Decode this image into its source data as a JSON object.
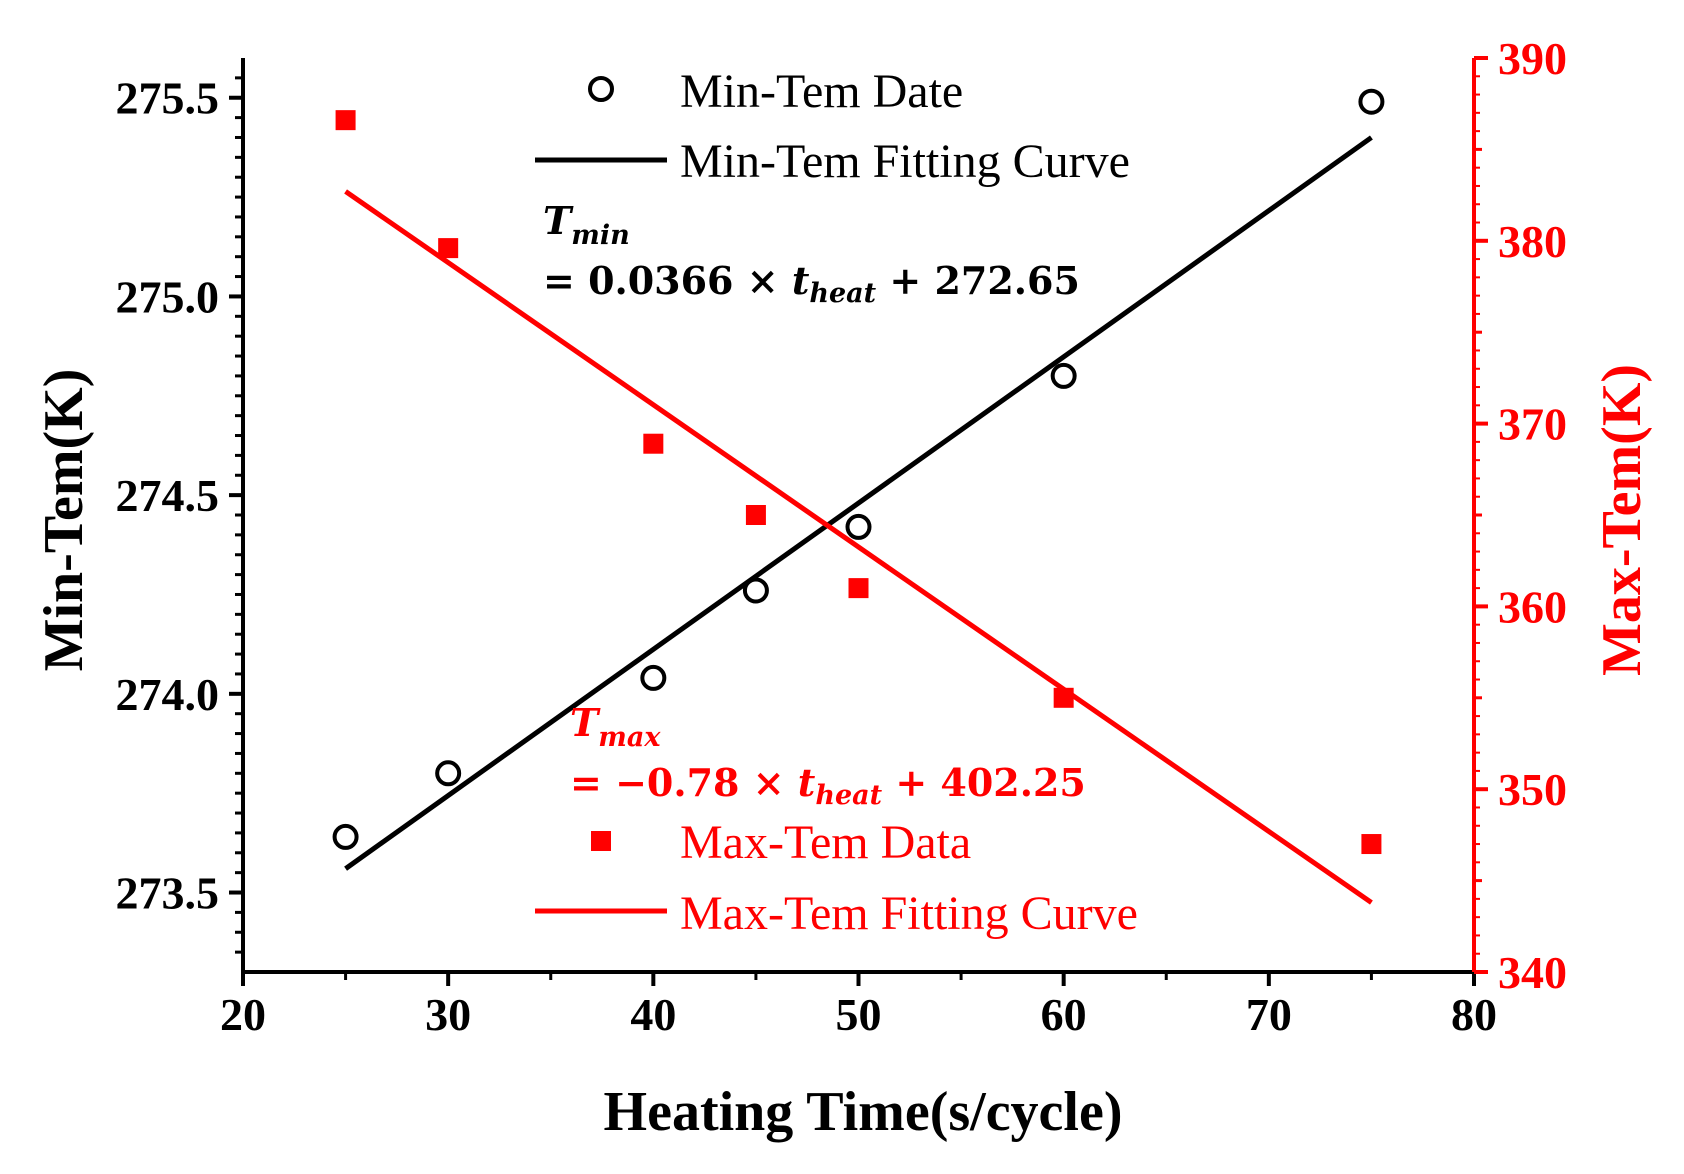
{
  "chart_data": {
    "type": "scatter",
    "xlabel": "Heating Time(s/cycle)",
    "ylabel": "Min-Tem(K)",
    "y2label": "Max-Tem(K)",
    "xlim": [
      20,
      80
    ],
    "ylim": [
      273.3,
      275.6
    ],
    "y2lim": [
      340,
      390
    ],
    "x_ticks": [
      "20",
      "30",
      "40",
      "50",
      "60",
      "70",
      "80"
    ],
    "y_ticks": [
      "273.5",
      "274.0",
      "274.5",
      "275.0",
      "275.5"
    ],
    "y2_ticks": [
      "340",
      "350",
      "360",
      "370",
      "380",
      "390"
    ],
    "colors": {
      "min": "#000000",
      "max": "#ff0000"
    },
    "series": [
      {
        "name": "Min-Tem Date",
        "kind": "points",
        "axis": "left",
        "marker": "open-circle",
        "x": [
          25,
          30,
          40,
          45,
          50,
          60,
          75
        ],
        "y": [
          273.64,
          273.8,
          274.04,
          274.26,
          274.42,
          274.8,
          275.49
        ]
      },
      {
        "name": "Min-Tem Fitting Curve",
        "kind": "line",
        "axis": "left",
        "x": [
          25,
          75
        ],
        "y": [
          273.56,
          275.4
        ]
      },
      {
        "name": "Max-Tem Data",
        "kind": "points",
        "axis": "right",
        "marker": "filled-square",
        "x": [
          25,
          30,
          40,
          45,
          50,
          60,
          75
        ],
        "y": [
          386.6,
          379.6,
          368.9,
          365.0,
          361.0,
          355.0,
          347.0
        ]
      },
      {
        "name": "Max-Tem Fitting Curve",
        "kind": "line",
        "axis": "right",
        "x": [
          25,
          75
        ],
        "y": [
          382.7,
          343.8
        ]
      }
    ],
    "legend": [
      "Min-Tem Date",
      "Min-Tem Fitting Curve",
      "Max-Tem Data",
      "Max-Tem Fitting Curve"
    ],
    "annotations": {
      "min_eq": {
        "var": "T",
        "sub": "min",
        "prefix": "= 0.0366 × ",
        "tvar": "t",
        "tsub": "heat",
        "suffix": " + 272.65"
      },
      "max_eq": {
        "var": "T",
        "sub": "max",
        "prefix": "= −0.78 × ",
        "tvar": "t",
        "tsub": "heat",
        "suffix": " + 402.25"
      }
    }
  }
}
